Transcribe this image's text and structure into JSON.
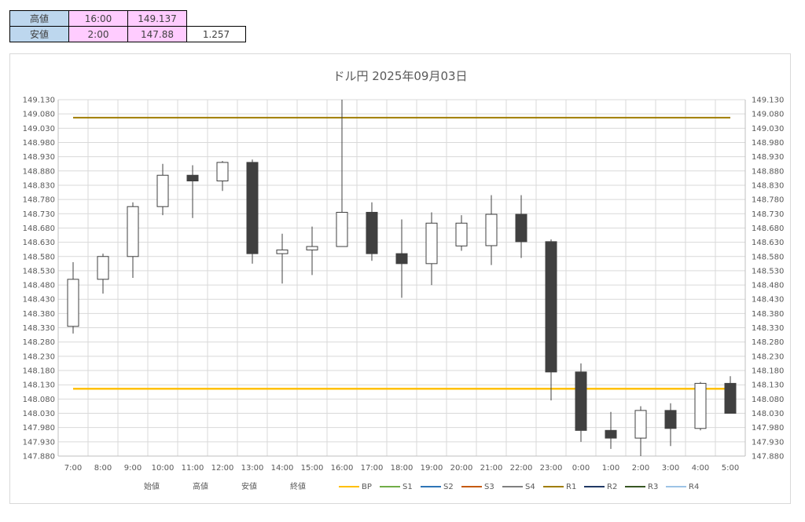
{
  "summary": {
    "high_label": "高値",
    "high_time": "16:00",
    "high_value": "149.137",
    "low_label": "安値",
    "low_time": "2:00",
    "low_value": "147.88",
    "range": "1.257"
  },
  "chart_data": {
    "type": "candlestick",
    "title": "ドル円  2025年09月03日",
    "categories": [
      "7:00",
      "8:00",
      "9:00",
      "10:00",
      "11:00",
      "12:00",
      "13:00",
      "14:00",
      "15:00",
      "16:00",
      "17:00",
      "18:00",
      "19:00",
      "20:00",
      "21:00",
      "22:00",
      "23:00",
      "0:00",
      "1:00",
      "2:00",
      "3:00",
      "4:00",
      "5:00"
    ],
    "open": [
      148.335,
      148.5,
      148.58,
      148.755,
      148.865,
      148.845,
      148.91,
      148.59,
      148.603,
      148.615,
      148.735,
      148.59,
      148.555,
      148.617,
      148.618,
      148.728,
      148.632,
      148.175,
      147.97,
      147.943,
      148.04,
      147.977,
      148.135
    ],
    "high": [
      148.56,
      148.59,
      148.77,
      148.905,
      148.9,
      148.915,
      148.92,
      148.66,
      148.685,
      149.137,
      148.77,
      148.71,
      148.735,
      148.725,
      148.795,
      148.795,
      148.64,
      148.205,
      148.035,
      148.055,
      148.065,
      148.14,
      148.16
    ],
    "low": [
      148.31,
      148.45,
      148.505,
      148.725,
      148.715,
      148.81,
      148.555,
      148.485,
      148.515,
      148.615,
      148.565,
      148.435,
      148.48,
      148.6,
      148.55,
      148.575,
      148.075,
      147.93,
      147.905,
      147.88,
      147.915,
      147.97,
      148.03
    ],
    "close": [
      148.5,
      148.58,
      148.755,
      148.865,
      148.845,
      148.91,
      148.59,
      148.603,
      148.615,
      148.735,
      148.59,
      148.555,
      148.697,
      148.697,
      148.728,
      148.632,
      148.175,
      147.97,
      147.943,
      148.04,
      147.977,
      148.135,
      148.03
    ],
    "y_axis": {
      "min": 147.88,
      "max": 149.13,
      "step": 0.05,
      "ticks": [
        "149.130",
        "149.080",
        "149.030",
        "148.980",
        "148.930",
        "148.880",
        "148.830",
        "148.780",
        "148.730",
        "148.680",
        "148.630",
        "148.580",
        "148.530",
        "148.480",
        "148.430",
        "148.380",
        "148.330",
        "148.280",
        "148.230",
        "148.180",
        "148.130",
        "148.080",
        "148.030",
        "147.980",
        "147.930",
        "147.880"
      ]
    },
    "lines": [
      {
        "name": "BP",
        "value": 148.116,
        "color": "#ffc000"
      },
      {
        "name": "R1",
        "value": 149.067,
        "color": "#a07d00"
      }
    ],
    "legend": [
      {
        "name": "始値",
        "color": ""
      },
      {
        "name": "高値",
        "color": ""
      },
      {
        "name": "安値",
        "color": ""
      },
      {
        "name": "終値",
        "color": ""
      },
      {
        "name": "BP",
        "color": "#ffc000"
      },
      {
        "name": "S1",
        "color": "#70ad47"
      },
      {
        "name": "S2",
        "color": "#2e75b6"
      },
      {
        "name": "S3",
        "color": "#c55a11"
      },
      {
        "name": "S4",
        "color": "#7f7f7f"
      },
      {
        "name": "R1",
        "color": "#a07d00"
      },
      {
        "name": "R2",
        "color": "#203864"
      },
      {
        "name": "R3",
        "color": "#375623"
      },
      {
        "name": "R4",
        "color": "#9dc3e6"
      }
    ],
    "grid": true,
    "legend_position": "bottom",
    "up_color": "#ffffff",
    "down_color": "#404040"
  }
}
